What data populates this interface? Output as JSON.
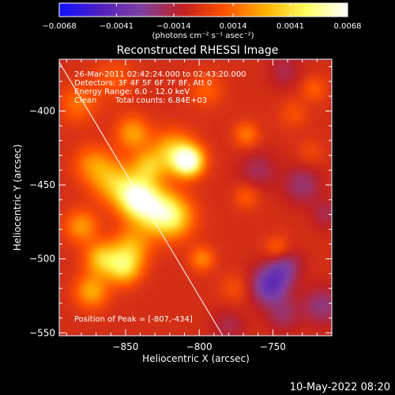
{
  "chart_data": {
    "type": "heatmap",
    "title": "Reconstructed RHESSI Image",
    "xlabel": "Heliocentric X (arcsec)",
    "ylabel": "Heliocentric Y (arcsec)",
    "x_range": [
      -895,
      -710
    ],
    "y_range": [
      -552,
      -365
    ],
    "x_ticks": [
      {
        "value": -850,
        "label": "−850"
      },
      {
        "value": -800,
        "label": "−800"
      },
      {
        "value": -750,
        "label": "−750"
      }
    ],
    "y_ticks": [
      {
        "value": -400,
        "label": "−400"
      },
      {
        "value": -450,
        "label": "−450"
      },
      {
        "value": -500,
        "label": "−500"
      },
      {
        "value": -550,
        "label": "−550"
      }
    ],
    "colorbar": {
      "range": [
        -0.0068,
        0.0068
      ],
      "tick_values": [
        -0.0068,
        -0.0041,
        -0.0014,
        0.0014,
        0.0041,
        0.0068
      ],
      "tick_labels": [
        "−0.0068",
        "−0.0041",
        "−0.0014",
        "0.0014",
        "0.0041",
        "0.0068"
      ],
      "unit_label": "(photons cm⁻² s⁻¹ asec⁻²)",
      "colors": [
        "#1010ff",
        "#5020c0",
        "#8040a0",
        "#c02020",
        "#ff5000",
        "#ffb000",
        "#ffff60",
        "#ffffff"
      ]
    },
    "peak": {
      "x": -807,
      "y": -434
    },
    "limb_line": {
      "x1": -895,
      "y1": -367,
      "x2": -784,
      "y2": -552
    },
    "blobs": [
      {
        "x": -807,
        "y": -434,
        "intensity": 0.0068,
        "sigma": 7
      },
      {
        "x": -818,
        "y": -428,
        "intensity": 0.0038,
        "sigma": 10
      },
      {
        "x": -843,
        "y": -458,
        "intensity": 0.0052,
        "sigma": 9
      },
      {
        "x": -832,
        "y": -466,
        "intensity": 0.0046,
        "sigma": 11
      },
      {
        "x": -818,
        "y": -472,
        "intensity": 0.0042,
        "sigma": 10
      },
      {
        "x": -858,
        "y": -448,
        "intensity": 0.0034,
        "sigma": 10
      },
      {
        "x": -866,
        "y": -500,
        "intensity": 0.0038,
        "sigma": 8
      },
      {
        "x": -851,
        "y": -506,
        "intensity": 0.0042,
        "sigma": 8
      },
      {
        "x": -846,
        "y": -492,
        "intensity": 0.003,
        "sigma": 9
      },
      {
        "x": -873,
        "y": -522,
        "intensity": 0.0032,
        "sigma": 8
      },
      {
        "x": -880,
        "y": -478,
        "intensity": 0.0028,
        "sigma": 8
      },
      {
        "x": -872,
        "y": -436,
        "intensity": 0.0024,
        "sigma": 9
      },
      {
        "x": -882,
        "y": -395,
        "intensity": 0.002,
        "sigma": 9
      },
      {
        "x": -845,
        "y": -415,
        "intensity": 0.003,
        "sigma": 8
      },
      {
        "x": -835,
        "y": -438,
        "intensity": 0.0032,
        "sigma": 8
      },
      {
        "x": -858,
        "y": -378,
        "intensity": 0.0014,
        "sigma": 10
      },
      {
        "x": -768,
        "y": -416,
        "intensity": 0.0022,
        "sigma": 6
      },
      {
        "x": -768,
        "y": -458,
        "intensity": 0.0016,
        "sigma": 6
      },
      {
        "x": -747,
        "y": -493,
        "intensity": 0.0018,
        "sigma": 6
      },
      {
        "x": -776,
        "y": -520,
        "intensity": 0.0012,
        "sigma": 7
      },
      {
        "x": -798,
        "y": -500,
        "intensity": 0.0024,
        "sigma": 6
      },
      {
        "x": -795,
        "y": -386,
        "intensity": 0.0016,
        "sigma": 8
      },
      {
        "x": -736,
        "y": -402,
        "intensity": 0.0012,
        "sigma": 7
      },
      {
        "x": -722,
        "y": -385,
        "intensity": 0.0016,
        "sigma": 6
      },
      {
        "x": -724,
        "y": -428,
        "intensity": 0.001,
        "sigma": 6
      },
      {
        "x": -752,
        "y": -518,
        "intensity": -0.0035,
        "sigma": 9
      },
      {
        "x": -742,
        "y": -505,
        "intensity": -0.0022,
        "sigma": 8
      },
      {
        "x": -730,
        "y": -450,
        "intensity": -0.0018,
        "sigma": 9
      },
      {
        "x": -760,
        "y": -440,
        "intensity": -0.0014,
        "sigma": 9
      },
      {
        "x": -717,
        "y": -532,
        "intensity": -0.002,
        "sigma": 9
      },
      {
        "x": -743,
        "y": -538,
        "intensity": -0.0015,
        "sigma": 8
      },
      {
        "x": -780,
        "y": -545,
        "intensity": -0.0012,
        "sigma": 8
      },
      {
        "x": -742,
        "y": -373,
        "intensity": -0.0012,
        "sigma": 8
      },
      {
        "x": -714,
        "y": -470,
        "intensity": -0.0012,
        "sigma": 7
      }
    ]
  },
  "info": {
    "time_line": "26-Mar-2011 02:42:24.000 to 02:43:20.000",
    "detectors_line": "Detectors: 3F 4F 5F 6F 7F 8F, Att 0",
    "energy_line": "Energy Range: 6.0 - 12.0 keV",
    "clean_label": "Clean",
    "counts_line": "Total counts: 6.84E+03",
    "peak_label": "Position of Peak = [-807,-434]"
  },
  "footer": {
    "timestamp": "10-May-2022 08:20"
  }
}
